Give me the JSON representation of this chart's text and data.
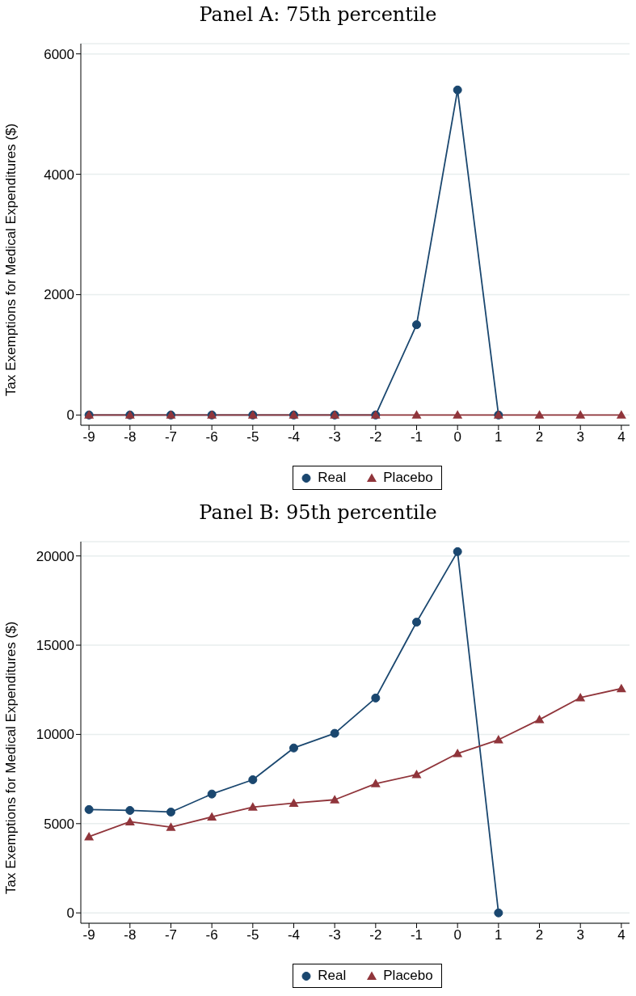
{
  "chart_data": [
    {
      "type": "line",
      "title": "Panel A: 75th percentile",
      "ylabel": "Tax Exemptions for Medical Expenditures ($)",
      "x": [
        -9,
        -8,
        -7,
        -6,
        -5,
        -4,
        -3,
        -2,
        -1,
        0,
        1,
        2,
        3,
        4
      ],
      "xlim": [
        -9.2,
        4.2
      ],
      "xticks": [
        -9,
        -8,
        -7,
        -6,
        -5,
        -4,
        -3,
        -2,
        -1,
        0,
        1,
        2,
        3,
        4
      ],
      "ylim": [
        -170,
        6170
      ],
      "yticks": [
        0,
        2000,
        4000,
        6000
      ],
      "grid": "y",
      "legend": "bottom",
      "series": [
        {
          "name": "Real",
          "color": "#1a476f",
          "marker": "circle",
          "values": [
            0,
            0,
            0,
            0,
            0,
            0,
            0,
            0,
            1500,
            5400,
            0,
            null,
            null,
            null
          ]
        },
        {
          "name": "Placebo",
          "color": "#90353b",
          "marker": "triangle",
          "values": [
            0,
            0,
            0,
            0,
            0,
            0,
            0,
            0,
            0,
            0,
            0,
            0,
            0,
            0
          ]
        }
      ]
    },
    {
      "type": "line",
      "title": "Panel B: 95th percentile",
      "ylabel": "Tax Exemptions for Medical Expenditures ($)",
      "x": [
        -9,
        -8,
        -7,
        -6,
        -5,
        -4,
        -3,
        -2,
        -1,
        0,
        1,
        2,
        3,
        4
      ],
      "xlim": [
        -9.2,
        4.2
      ],
      "xticks": [
        -9,
        -8,
        -7,
        -6,
        -5,
        -4,
        -3,
        -2,
        -1,
        0,
        1,
        2,
        3,
        4
      ],
      "ylim": [
        -580,
        20800
      ],
      "yticks": [
        0,
        5000,
        10000,
        15000,
        20000
      ],
      "grid": "y",
      "legend": "bottom",
      "series": [
        {
          "name": "Real",
          "color": "#1a476f",
          "marker": "circle",
          "values": [
            5790,
            5740,
            5650,
            6660,
            7460,
            9240,
            10060,
            12040,
            16290,
            20240,
            0,
            null,
            null,
            null
          ]
        },
        {
          "name": "Placebo",
          "color": "#90353b",
          "marker": "triangle",
          "values": [
            4270,
            5110,
            4800,
            5380,
            5930,
            6150,
            6340,
            7240,
            7750,
            8930,
            9700,
            10830,
            12060,
            12570
          ]
        }
      ]
    }
  ]
}
